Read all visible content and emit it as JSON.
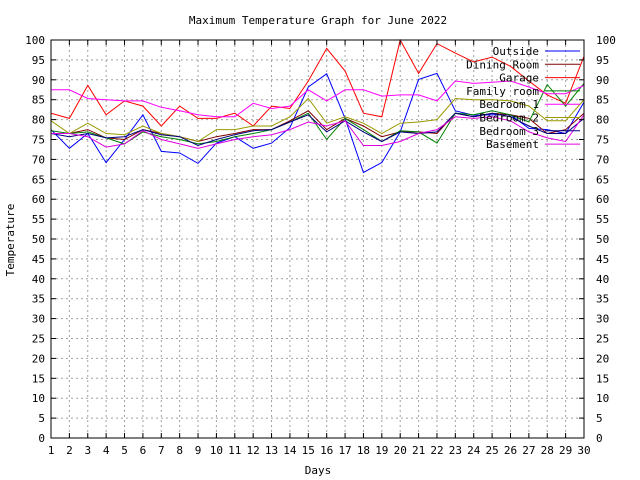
{
  "chart_data": {
    "type": "line",
    "title": "Maximum Temperature Graph for June 2022",
    "xlabel": "Days",
    "ylabel": "Temperature",
    "xlim": [
      1,
      30
    ],
    "ylim": [
      0,
      100
    ],
    "x_ticks": [
      1,
      2,
      3,
      4,
      5,
      6,
      7,
      8,
      9,
      10,
      11,
      12,
      13,
      14,
      15,
      16,
      17,
      18,
      19,
      20,
      21,
      22,
      23,
      24,
      25,
      26,
      27,
      28,
      29,
      30
    ],
    "y_ticks": [
      0,
      5,
      10,
      15,
      20,
      25,
      30,
      35,
      40,
      45,
      50,
      55,
      60,
      65,
      70,
      75,
      80,
      85,
      90,
      95,
      100
    ],
    "grid": true,
    "y_axis_mirrored_right": true,
    "legend_position": "top-right",
    "x": [
      1,
      2,
      3,
      4,
      5,
      6,
      7,
      8,
      9,
      10,
      11,
      12,
      13,
      14,
      15,
      16,
      17,
      18,
      19,
      20,
      21,
      22,
      23,
      24,
      25,
      26,
      27,
      28,
      29,
      30
    ],
    "series": [
      {
        "name": "Outside",
        "color": "#0000ff",
        "values": [
          77.5,
          72.8,
          76.5,
          69.2,
          75,
          81.2,
          72,
          71.6,
          69,
          74.1,
          75.7,
          72.8,
          74.1,
          78,
          88.2,
          91.5,
          80.3,
          66.7,
          69.2,
          76.9,
          90.1,
          91.6,
          82.2,
          81.1,
          81.2,
          81.2,
          77.8,
          77.5,
          76.5,
          84.4
        ]
      },
      {
        "name": "Dining Room",
        "color": "#800000",
        "values": [
          76.5,
          76.5,
          77.5,
          75.4,
          75,
          77.5,
          76.5,
          75.7,
          74.5,
          75.7,
          76.5,
          77.5,
          77.5,
          79.7,
          82.2,
          77.5,
          80.3,
          78.4,
          75.7,
          76.9,
          76.9,
          76.5,
          81.6,
          80.7,
          81.6,
          81.2,
          80.3,
          76.5,
          77.5,
          81.6
        ]
      },
      {
        "name": "Garage",
        "color": "#ff0000",
        "values": [
          81.6,
          80.3,
          88.6,
          81.2,
          84.7,
          83.4,
          78.4,
          83.4,
          80.3,
          80.3,
          81.6,
          78.4,
          83.4,
          82.8,
          89.7,
          97.9,
          92.2,
          81.6,
          80.7,
          100,
          91.6,
          99.1,
          96.7,
          94.5,
          95.7,
          93.4,
          89.7,
          86.2,
          84.1,
          95.9
        ]
      },
      {
        "name": "Family room",
        "color": "#008000",
        "values": [
          77.2,
          76.5,
          76.9,
          75.4,
          73.9,
          76.9,
          75.7,
          75,
          73.9,
          74.5,
          75.7,
          76.5,
          77.5,
          79.4,
          81.6,
          75,
          80.3,
          77.5,
          74.5,
          77.2,
          76.9,
          74.1,
          81.6,
          81.2,
          82.2,
          81.2,
          79.4,
          88.8,
          83.4,
          89.1
        ]
      },
      {
        "name": "Bedroom 1",
        "color": "#ff00ff",
        "values": [
          87.5,
          87.5,
          85.3,
          85,
          84.7,
          84.7,
          83.1,
          82.2,
          81.2,
          80.7,
          80.7,
          84.1,
          82.8,
          83.4,
          87.5,
          84.7,
          87.5,
          87.5,
          85.9,
          86.2,
          86.2,
          84.7,
          89.7,
          89.1,
          89.4,
          89.7,
          88.2,
          86.5,
          86.5,
          88.6
        ]
      },
      {
        "name": "Bedroom 2",
        "color": "#999900",
        "values": [
          79.7,
          76.5,
          79.1,
          76.5,
          76.2,
          78.4,
          76.5,
          75.7,
          74.5,
          77.5,
          77.5,
          78.4,
          78.4,
          80.7,
          85.3,
          79.1,
          80.7,
          79.1,
          76.5,
          79.1,
          79.4,
          80,
          85.3,
          85,
          85,
          84.7,
          83.4,
          79.7,
          79.7,
          85
        ]
      },
      {
        "name": "Bedroom 3",
        "color": "#000080",
        "values": [
          76.5,
          75.7,
          76.5,
          75.4,
          75.7,
          77.5,
          76.2,
          75.7,
          73.5,
          75,
          76.2,
          77.2,
          77.5,
          79.4,
          81.2,
          76.9,
          79.7,
          76.9,
          74.5,
          76.9,
          76.5,
          76.9,
          81.6,
          80.7,
          81.6,
          80.7,
          78.4,
          76.5,
          76.5,
          80.3
        ]
      },
      {
        "name": "Basement",
        "color": "#e000e0",
        "values": [
          76.5,
          76.5,
          75.7,
          73.1,
          73.9,
          77.2,
          75,
          73.9,
          72.8,
          73.9,
          75,
          75.7,
          76.2,
          77.5,
          79.4,
          78.4,
          79.7,
          73.5,
          73.5,
          74.5,
          76.5,
          77.5,
          80.7,
          80.3,
          80.7,
          79.7,
          76.9,
          75.4,
          74.5,
          81.2
        ]
      }
    ]
  }
}
